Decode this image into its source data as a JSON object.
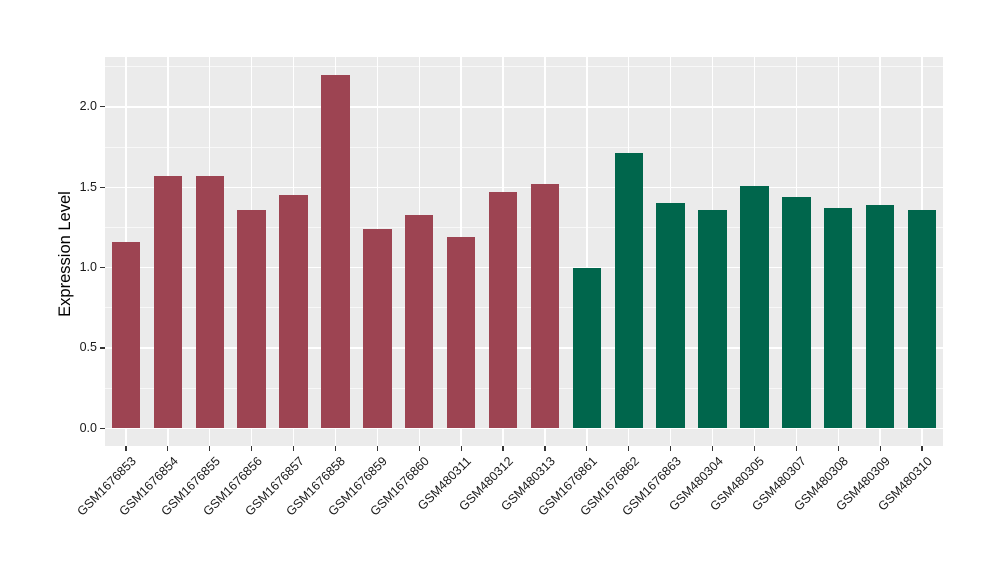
{
  "chart_data": {
    "type": "bar",
    "ylabel": "Expression Level",
    "categories": [
      "GSM1676853",
      "GSM1676854",
      "GSM1676855",
      "GSM1676856",
      "GSM1676857",
      "GSM1676858",
      "GSM1676859",
      "GSM1676860",
      "GSM480311",
      "GSM480312",
      "GSM480313",
      "GSM1676861",
      "GSM1676862",
      "GSM1676863",
      "GSM480304",
      "GSM480305",
      "GSM480307",
      "GSM480308",
      "GSM480309",
      "GSM480310"
    ],
    "values": [
      1.16,
      1.57,
      1.57,
      1.36,
      1.45,
      2.2,
      1.24,
      1.33,
      1.19,
      1.47,
      1.52,
      1.0,
      1.71,
      1.4,
      1.36,
      1.51,
      1.44,
      1.37,
      1.39,
      1.36
    ],
    "bar_group_index": [
      0,
      0,
      0,
      0,
      0,
      0,
      0,
      0,
      0,
      0,
      0,
      1,
      1,
      1,
      1,
      1,
      1,
      1,
      1,
      1
    ],
    "group_colors": [
      "#9D4452",
      "#00664C"
    ],
    "yticks": {
      "values": [
        0,
        0.5,
        1.0,
        1.5,
        2.0
      ],
      "labels": [
        "0.0",
        "0.5",
        "1.0",
        "1.5",
        "2.0"
      ]
    },
    "ylim": [
      0,
      2.2
    ],
    "panel_domain": [
      -0.11,
      2.31
    ],
    "grid": {
      "horizontal": "major-and-minor",
      "vertical": "major-at-each-category"
    },
    "legend": "none",
    "styles": {
      "panel_bg": "#EBEBEB",
      "grid_color": "#FFFFFF",
      "axis_text_color": "#1A1A1A",
      "tick_color": "#333333",
      "background": "#FFFFFF"
    }
  }
}
